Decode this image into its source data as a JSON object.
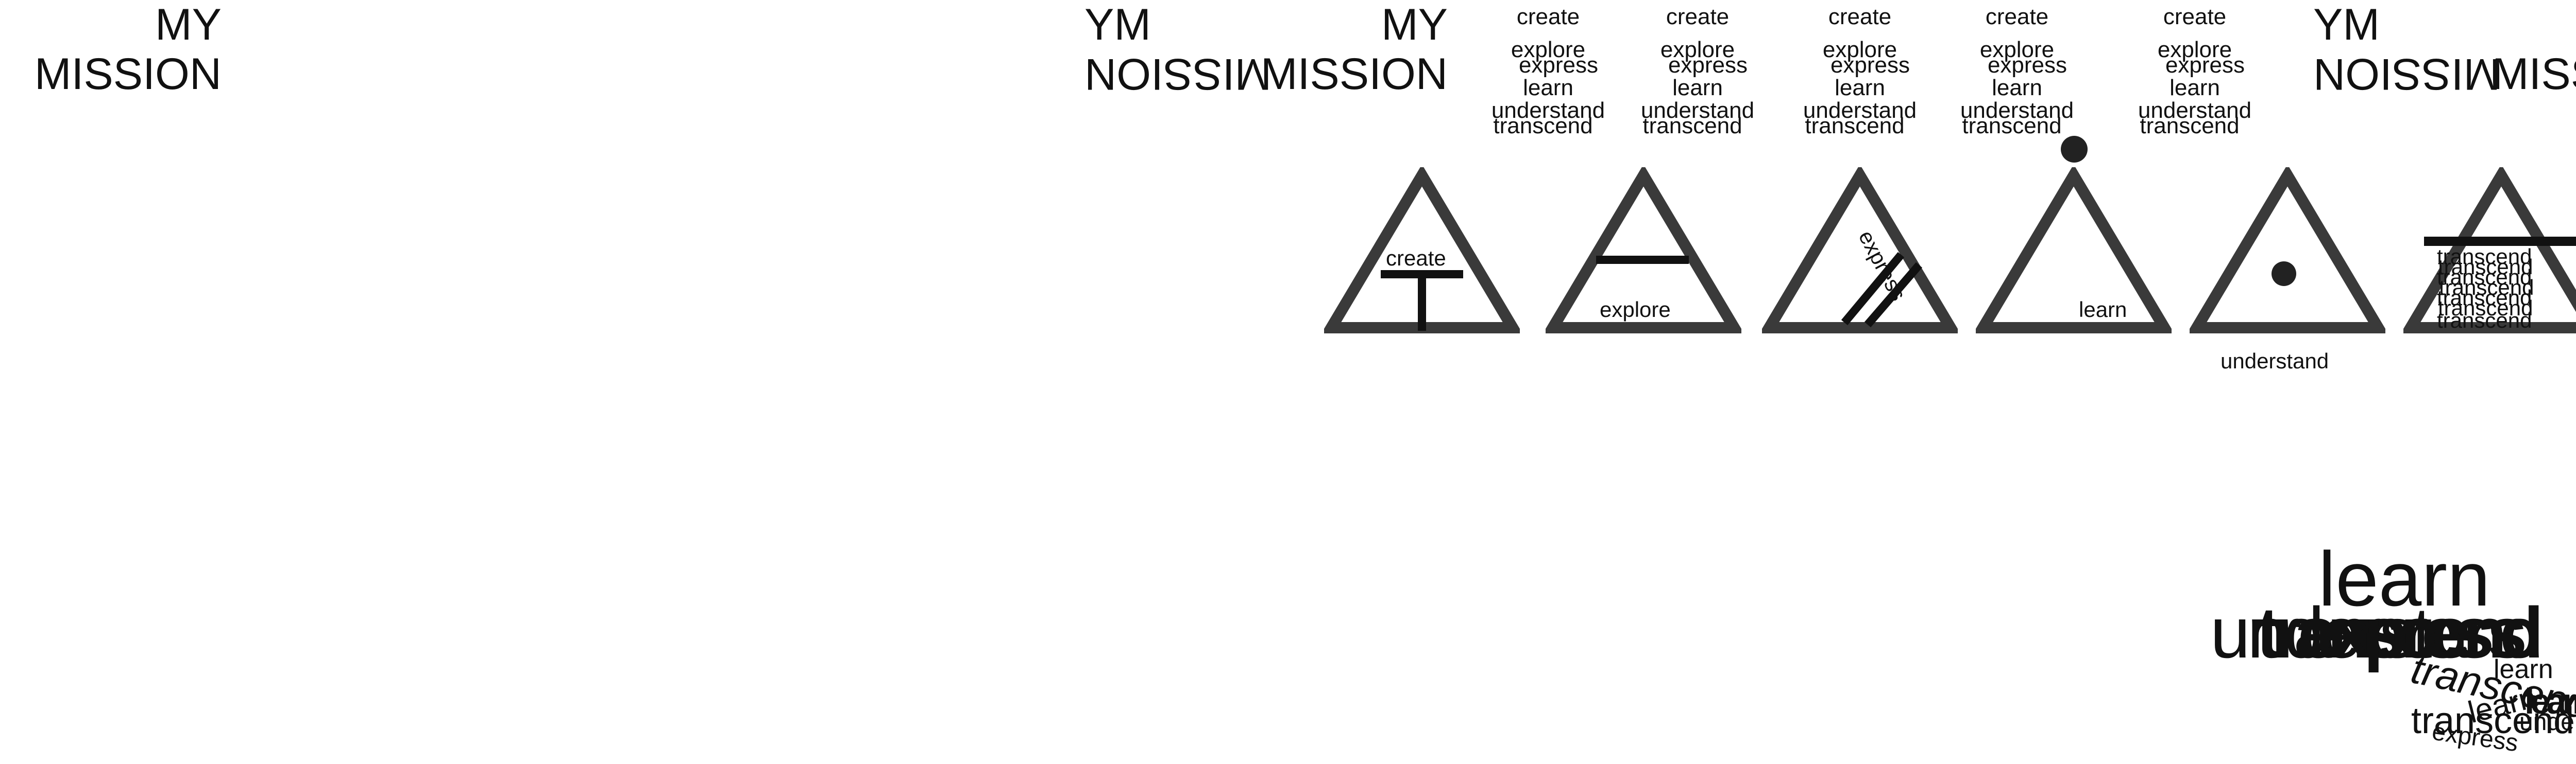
{
  "title": {
    "line1": "MY",
    "line2": "MISSION"
  },
  "words": [
    "create",
    "explore",
    "express",
    "learn",
    "understand",
    "transcend"
  ],
  "triangle_labels": {
    "create": "create",
    "explore": "explore",
    "express": "express",
    "learn": "learn",
    "understand": "understand",
    "transcend": "transcend"
  },
  "scatter": {
    "learn_big": "learn",
    "understand_big": "understand",
    "transcend_a": "transcend",
    "learn_small": "learn",
    "transcend_b": "transcend",
    "learn_c": "learn",
    "understand_c": "understand",
    "express_c": "express",
    "learn_d": "learn"
  },
  "colors": {
    "ink": "#111111",
    "triangle": "#3a3a3a",
    "background": "#ffffff"
  }
}
